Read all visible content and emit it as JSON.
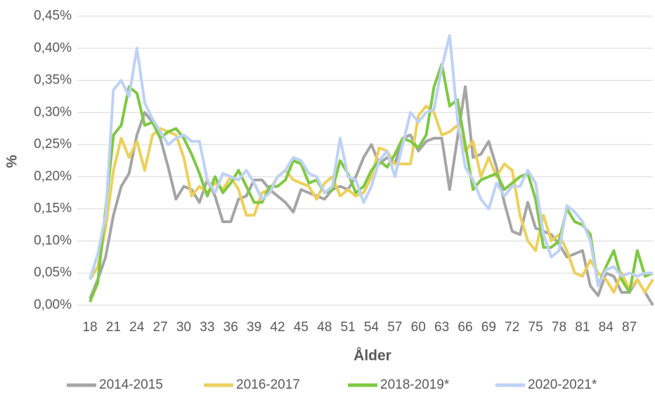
{
  "chart_data": {
    "type": "line",
    "x_label": "Ålder",
    "y_label": "%",
    "categories": [
      "18",
      null,
      null,
      "21",
      null,
      null,
      "24",
      null,
      null,
      "27",
      null,
      null,
      "30",
      null,
      null,
      "33",
      null,
      null,
      "36",
      null,
      null,
      "39",
      null,
      null,
      "42",
      null,
      null,
      "45",
      null,
      null,
      "48",
      null,
      null,
      "51",
      null,
      null,
      "54",
      null,
      null,
      "57",
      null,
      null,
      "60",
      null,
      null,
      "63",
      null,
      null,
      "66",
      null,
      null,
      "69",
      null,
      null,
      "72",
      null,
      null,
      "75",
      null,
      null,
      "78",
      null,
      null,
      "81",
      null,
      null,
      "84",
      null,
      null,
      "87",
      null,
      null,
      null
    ],
    "ylim": [
      0,
      0.45
    ],
    "yticks": [
      {
        "value": 0,
        "label": "0,00%"
      },
      {
        "value": 0.05,
        "label": "0,05%"
      },
      {
        "value": 0.1,
        "label": "0,10%"
      },
      {
        "value": 0.15,
        "label": "0,15%"
      },
      {
        "value": 0.2,
        "label": "0,20%"
      },
      {
        "value": 0.25,
        "label": "0,25%"
      },
      {
        "value": 0.3,
        "label": "0,30%"
      },
      {
        "value": 0.35,
        "label": "0,35%"
      },
      {
        "value": 0.4,
        "label": "0,40%"
      },
      {
        "value": 0.45,
        "label": "0,45%"
      }
    ],
    "grid": true,
    "legend": "bottom",
    "series": [
      {
        "name": "2014-2015",
        "color": "#a5a5a5",
        "values": [
          0.01,
          0.04,
          0.075,
          0.14,
          0.185,
          0.205,
          0.265,
          0.3,
          0.285,
          0.26,
          0.215,
          0.165,
          0.185,
          0.18,
          0.16,
          0.195,
          0.17,
          0.13,
          0.13,
          0.165,
          0.17,
          0.195,
          0.195,
          0.18,
          0.17,
          0.16,
          0.145,
          0.18,
          0.175,
          0.17,
          0.165,
          0.18,
          0.185,
          0.18,
          0.2,
          0.23,
          0.25,
          0.22,
          0.23,
          0.22,
          0.26,
          0.265,
          0.24,
          0.255,
          0.26,
          0.26,
          0.18,
          0.26,
          0.34,
          0.23,
          0.235,
          0.255,
          0.215,
          0.16,
          0.115,
          0.11,
          0.16,
          0.12,
          0.115,
          0.11,
          0.095,
          0.075,
          0.08,
          0.085,
          0.03,
          0.015,
          0.05,
          0.045,
          0.02,
          0.02,
          0.04,
          0.02,
          0.0
        ]
      },
      {
        "name": "2016-2017",
        "color": "#ecd05c",
        "values": [
          0.04,
          0.06,
          0.12,
          0.21,
          0.26,
          0.23,
          0.255,
          0.21,
          0.265,
          0.275,
          0.27,
          0.265,
          0.23,
          0.17,
          0.185,
          0.175,
          0.19,
          0.18,
          0.2,
          0.18,
          0.14,
          0.14,
          0.175,
          0.18,
          0.2,
          0.21,
          0.195,
          0.19,
          0.185,
          0.165,
          0.19,
          0.2,
          0.17,
          0.18,
          0.17,
          0.175,
          0.2,
          0.245,
          0.24,
          0.22,
          0.22,
          0.22,
          0.295,
          0.31,
          0.3,
          0.265,
          0.27,
          0.28,
          0.24,
          0.255,
          0.2,
          0.23,
          0.2,
          0.22,
          0.21,
          0.14,
          0.1,
          0.085,
          0.14,
          0.1,
          0.11,
          0.085,
          0.05,
          0.045,
          0.07,
          0.05,
          0.04,
          0.02,
          0.05,
          0.025,
          0.04,
          0.02,
          0.04
        ]
      },
      {
        "name": "2018-2019*",
        "color": "#7fc843",
        "values": [
          0.005,
          0.035,
          0.15,
          0.265,
          0.28,
          0.34,
          0.33,
          0.28,
          0.285,
          0.26,
          0.27,
          0.275,
          0.26,
          0.235,
          0.205,
          0.17,
          0.2,
          0.175,
          0.19,
          0.21,
          0.185,
          0.16,
          0.16,
          0.185,
          0.185,
          0.195,
          0.225,
          0.22,
          0.19,
          0.195,
          0.175,
          0.18,
          0.225,
          0.205,
          0.175,
          0.185,
          0.21,
          0.225,
          0.215,
          0.235,
          0.26,
          0.255,
          0.245,
          0.265,
          0.34,
          0.375,
          0.31,
          0.32,
          0.25,
          0.18,
          0.195,
          0.2,
          0.205,
          0.18,
          0.19,
          0.2,
          0.205,
          0.165,
          0.09,
          0.09,
          0.1,
          0.15,
          0.13,
          0.125,
          0.11,
          0.03,
          0.06,
          0.085,
          0.04,
          0.02,
          0.085,
          0.045,
          0.05
        ]
      },
      {
        "name": "2020-2021*",
        "color": "#bfd1f6",
        "values": [
          0.04,
          0.08,
          0.14,
          0.335,
          0.35,
          0.325,
          0.4,
          0.315,
          0.29,
          0.27,
          0.25,
          0.26,
          0.265,
          0.255,
          0.255,
          0.195,
          0.175,
          0.205,
          0.2,
          0.195,
          0.21,
          0.19,
          0.165,
          0.175,
          0.2,
          0.21,
          0.23,
          0.225,
          0.205,
          0.2,
          0.175,
          0.185,
          0.26,
          0.2,
          0.195,
          0.16,
          0.185,
          0.225,
          0.24,
          0.2,
          0.25,
          0.3,
          0.285,
          0.3,
          0.305,
          0.37,
          0.42,
          0.29,
          0.215,
          0.195,
          0.165,
          0.15,
          0.19,
          0.17,
          0.185,
          0.185,
          0.21,
          0.19,
          0.11,
          0.075,
          0.085,
          0.155,
          0.145,
          0.13,
          0.1,
          0.03,
          0.055,
          0.06,
          0.045,
          0.05,
          0.045,
          0.05,
          0.05
        ]
      }
    ]
  }
}
